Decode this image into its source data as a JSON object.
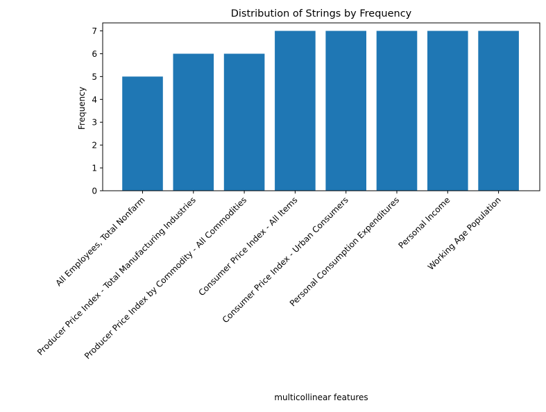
{
  "chart_data": {
    "type": "bar",
    "title": "Distribution of Strings by Frequency",
    "xlabel": "multicollinear features",
    "ylabel": "Frequency",
    "categories": [
      "All Employees, Total Nonfarm",
      "Producer Price Index - Total Manufacturing Industries",
      "Producer Price Index by Commodity - All Commodities",
      "Consumer Price Index - All Items",
      "Consumer Price Index - Urban Consumers",
      "Personal Consumption Expenditures",
      "Personal Income",
      "Working Age Population"
    ],
    "values": [
      5,
      6,
      6,
      7,
      7,
      7,
      7,
      7
    ],
    "ylim": [
      0,
      7.35
    ],
    "yticks": [
      0,
      1,
      2,
      3,
      4,
      5,
      6,
      7
    ],
    "grid": false,
    "bar_color": "#1f77b4"
  }
}
